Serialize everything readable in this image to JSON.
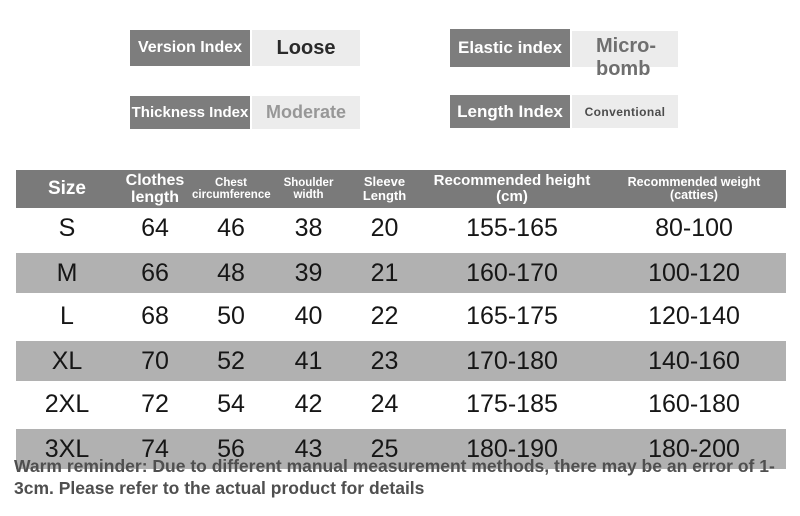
{
  "indices": [
    {
      "label": "Version Index",
      "value": "Loose"
    },
    {
      "label": "Thickness Index",
      "value": "Moderate"
    },
    {
      "label": "Elastic index",
      "value": "Micro-bomb"
    },
    {
      "label": "Length Index",
      "value": "Conventional"
    }
  ],
  "size_table": {
    "columns": [
      "Size",
      "Clothes length",
      "Chest circumference",
      "Shoulder width",
      "Sleeve Length",
      "Recommended height (cm)",
      "Recommended weight (catties)"
    ],
    "rows": [
      [
        "S",
        "64",
        "46",
        "38",
        "20",
        "155-165",
        "80-100"
      ],
      [
        "M",
        "66",
        "48",
        "39",
        "21",
        "160-170",
        "100-120"
      ],
      [
        "L",
        "68",
        "50",
        "40",
        "22",
        "165-175",
        "120-140"
      ],
      [
        "XL",
        "70",
        "52",
        "41",
        "23",
        "170-180",
        "140-160"
      ],
      [
        "2XL",
        "72",
        "54",
        "42",
        "24",
        "175-185",
        "160-180"
      ],
      [
        "3XL",
        "74",
        "56",
        "43",
        "25",
        "180-190",
        "180-200"
      ]
    ],
    "striped_row_indices": [
      1,
      3,
      5
    ]
  },
  "footer": {
    "reminder": "Warm reminder: Due to different manual measurement methods, there may be an error of 1-3cm. Please refer to the actual product for details"
  },
  "colors": {
    "badge_label_bg": "#7d7d7d",
    "badge_value_bg": "#ececec",
    "table_header_bg": "#7a7a7a",
    "table_stripe_bg": "#b1b1b1",
    "data_text": "#161616",
    "reminder_text": "#4f4f4f"
  }
}
